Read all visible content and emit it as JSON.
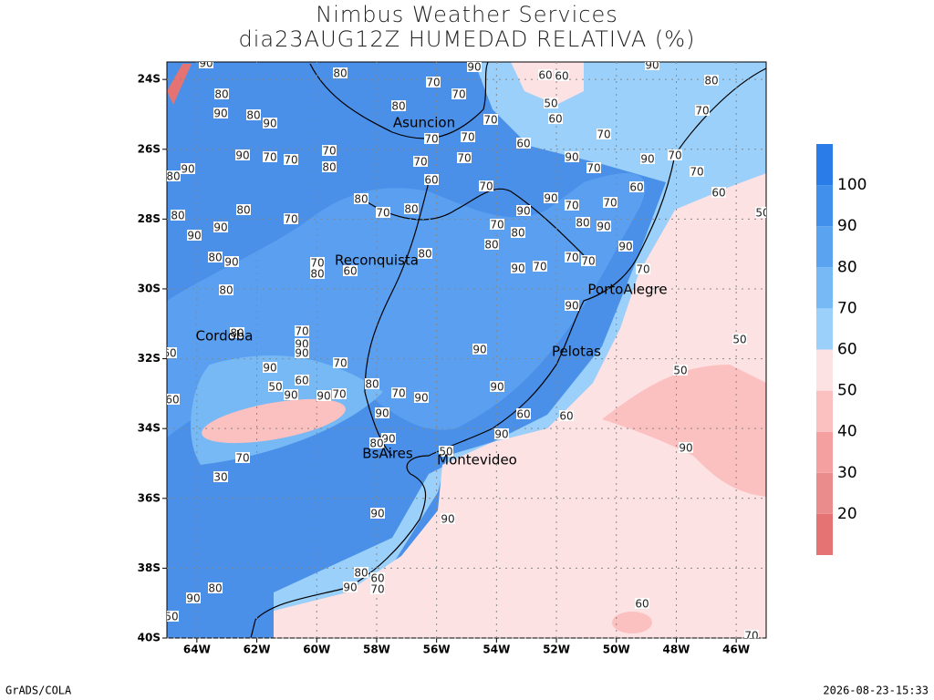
{
  "title": "Nimbus Weather Services",
  "subtitle": "dia23AUG12Z HUMEDAD RELATIVA (%)",
  "xlim": [
    -65,
    -45
  ],
  "ylim": [
    -40,
    -23.5
  ],
  "xticks": [
    {
      "value": -64,
      "label": "64W"
    },
    {
      "value": -62,
      "label": "62W"
    },
    {
      "value": -60,
      "label": "60W"
    },
    {
      "value": -58,
      "label": "58W"
    },
    {
      "value": -56,
      "label": "56W"
    },
    {
      "value": -54,
      "label": "54W"
    },
    {
      "value": -52,
      "label": "52W"
    },
    {
      "value": -50,
      "label": "50W"
    },
    {
      "value": -48,
      "label": "48W"
    },
    {
      "value": -46,
      "label": "46W"
    }
  ],
  "yticks": [
    {
      "value": -24,
      "label": "24S"
    },
    {
      "value": -26,
      "label": "26S"
    },
    {
      "value": -28,
      "label": "28S"
    },
    {
      "value": -30,
      "label": "30S"
    },
    {
      "value": -32,
      "label": "32S"
    },
    {
      "value": -34,
      "label": "34S"
    },
    {
      "value": -36,
      "label": "36S"
    },
    {
      "value": -38,
      "label": "38S"
    },
    {
      "value": -40,
      "label": "40S"
    }
  ],
  "grid": true,
  "cities": [
    "Asuncion",
    "Reconquista",
    "Cordoba",
    "PortoAlegre",
    "Pelotas",
    "BsAires",
    "Montevideo"
  ],
  "contour_labels": [
    80,
    70,
    70,
    60,
    60,
    50,
    60,
    90,
    70,
    80,
    90,
    80,
    90,
    80,
    70,
    70,
    70,
    60,
    70,
    90,
    70,
    90,
    70,
    70,
    60,
    50,
    90,
    80,
    90,
    70,
    70,
    70,
    80,
    70,
    70,
    60,
    70,
    80,
    70,
    80,
    70,
    80,
    90,
    90,
    80,
    90,
    70,
    70,
    60,
    90,
    70,
    80,
    90,
    80,
    80,
    80,
    80,
    90,
    70,
    80,
    60,
    90,
    70,
    70,
    70,
    90,
    70,
    80,
    90,
    80,
    70,
    90,
    90,
    60,
    70,
    90,
    60,
    50,
    90,
    90,
    70,
    80,
    70,
    90,
    90,
    90,
    90,
    60,
    60,
    50,
    50,
    90,
    90,
    60,
    70,
    30,
    90,
    80,
    50,
    90,
    90,
    80,
    60,
    70,
    90,
    80,
    90,
    50,
    60,
    70,
    90,
    90,
    80
  ],
  "colorbar": {
    "levels": [
      20,
      30,
      40,
      50,
      60,
      70,
      80,
      90,
      100
    ],
    "colors": [
      "#e67373",
      "#eb8c8c",
      "#f5a0a0",
      "#fbc0c0",
      "#fde2e4",
      "#9bd0fa",
      "#77b9f5",
      "#5aa3f0",
      "#4090ec",
      "#2a7de8"
    ]
  },
  "footer": {
    "left": "GrADS/COLA",
    "right": "2026-08-23-15:33"
  }
}
